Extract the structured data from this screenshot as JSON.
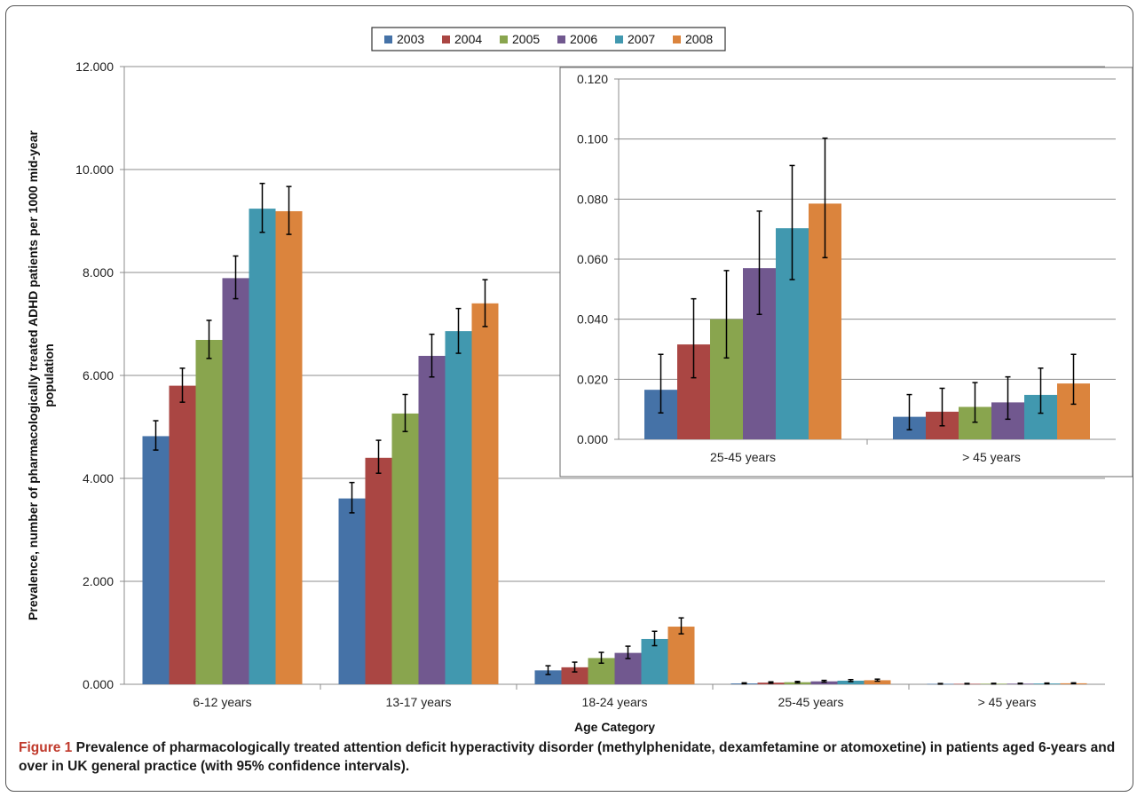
{
  "chart_data": [
    {
      "type": "bar",
      "title": "",
      "xlabel": "Age Category",
      "ylabel": "Prevalence, number of pharmacologically treated ADHD patients per 1000 mid-year population",
      "ylim": [
        0,
        12
      ],
      "yticks": [
        "0.000",
        "2.000",
        "4.000",
        "6.000",
        "8.000",
        "10.000",
        "12.000"
      ],
      "grid": true,
      "legend_position": "top-center",
      "categories": [
        "6-12 years",
        "13-17 years",
        "18-24 years",
        "25-45 years",
        "> 45 years"
      ],
      "series": [
        {
          "name": "2003",
          "color": "#4572a7",
          "values": [
            4.82,
            3.61,
            0.27,
            0.016,
            0.008
          ],
          "ci": [
            [
              4.55,
              5.12
            ],
            [
              3.33,
              3.92
            ],
            [
              0.19,
              0.36
            ],
            [
              0.009,
              0.028
            ],
            [
              0.003,
              0.015
            ]
          ]
        },
        {
          "name": "2004",
          "color": "#aa4643",
          "values": [
            5.8,
            4.4,
            0.33,
            0.032,
            0.009
          ],
          "ci": [
            [
              5.48,
              6.14
            ],
            [
              4.1,
              4.74
            ],
            [
              0.24,
              0.43
            ],
            [
              0.02,
              0.047
            ],
            [
              0.004,
              0.017
            ]
          ]
        },
        {
          "name": "2005",
          "color": "#89a54e",
          "values": [
            6.69,
            5.26,
            0.51,
            0.04,
            0.011
          ],
          "ci": [
            [
              6.33,
              7.07
            ],
            [
              4.91,
              5.63
            ],
            [
              0.41,
              0.62
            ],
            [
              0.027,
              0.056
            ],
            [
              0.006,
              0.019
            ]
          ]
        },
        {
          "name": "2006",
          "color": "#71588f",
          "values": [
            7.89,
            6.38,
            0.61,
            0.057,
            0.012
          ],
          "ci": [
            [
              7.49,
              8.32
            ],
            [
              5.97,
              6.8
            ],
            [
              0.5,
              0.74
            ],
            [
              0.042,
              0.076
            ],
            [
              0.007,
              0.021
            ]
          ]
        },
        {
          "name": "2007",
          "color": "#4198af",
          "values": [
            9.24,
            6.86,
            0.88,
            0.07,
            0.015
          ],
          "ci": [
            [
              8.78,
              9.73
            ],
            [
              6.43,
              7.3
            ],
            [
              0.75,
              1.03
            ],
            [
              0.053,
              0.091
            ],
            [
              0.009,
              0.024
            ]
          ]
        },
        {
          "name": "2008",
          "color": "#db843d",
          "values": [
            9.19,
            7.4,
            1.12,
            0.079,
            0.019
          ],
          "ci": [
            [
              8.74,
              9.67
            ],
            [
              6.95,
              7.86
            ],
            [
              0.98,
              1.29
            ],
            [
              0.061,
              0.1
            ],
            [
              0.012,
              0.028
            ]
          ]
        }
      ]
    },
    {
      "type": "bar",
      "title": "",
      "xlabel": "",
      "ylabel": "",
      "ylim": [
        0,
        0.12
      ],
      "yticks": [
        "0.000",
        "0.020",
        "0.040",
        "0.060",
        "0.080",
        "0.100",
        "0.120"
      ],
      "grid": true,
      "categories": [
        "25-45 years",
        "> 45 years"
      ],
      "series": [
        {
          "name": "2003",
          "color": "#4572a7",
          "values": [
            0.0165,
            0.0075
          ],
          "ci": [
            [
              0.0088,
              0.0283
            ],
            [
              0.0032,
              0.0149
            ]
          ]
        },
        {
          "name": "2004",
          "color": "#aa4643",
          "values": [
            0.0316,
            0.0092
          ],
          "ci": [
            [
              0.0205,
              0.0468
            ],
            [
              0.0045,
              0.017
            ]
          ]
        },
        {
          "name": "2005",
          "color": "#89a54e",
          "values": [
            0.04,
            0.0108
          ],
          "ci": [
            [
              0.0271,
              0.0562
            ],
            [
              0.0057,
              0.0189
            ]
          ]
        },
        {
          "name": "2006",
          "color": "#71588f",
          "values": [
            0.057,
            0.0123
          ],
          "ci": [
            [
              0.0416,
              0.076
            ],
            [
              0.0067,
              0.0208
            ]
          ]
        },
        {
          "name": "2007",
          "color": "#4198af",
          "values": [
            0.0703,
            0.0148
          ],
          "ci": [
            [
              0.0532,
              0.0912
            ],
            [
              0.0087,
              0.0237
            ]
          ]
        },
        {
          "name": "2008",
          "color": "#db843d",
          "values": [
            0.0785,
            0.0186
          ],
          "ci": [
            [
              0.0605,
              0.1003
            ],
            [
              0.0117,
              0.0283
            ]
          ]
        }
      ]
    }
  ],
  "caption": {
    "label": "Figure 1",
    "text": " Prevalence of pharmacologically treated attention deficit hyperactivity disorder (methylphenidate, dexamfetamine or atomoxetine) in patients aged 6-years and over in UK general practice (with 95% confidence intervals)."
  }
}
